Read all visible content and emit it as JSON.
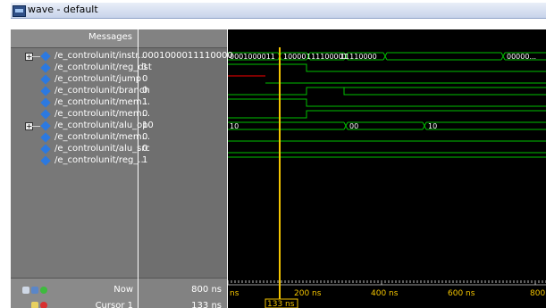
{
  "window": {
    "title": "wave - default"
  },
  "header": {
    "messages_label": "Messages"
  },
  "signals": [
    {
      "name": "/e_controlunit/instr...",
      "value": "0001000011110000",
      "expandable": true
    },
    {
      "name": "/e_controlunit/reg_dst",
      "value": "1",
      "expandable": false
    },
    {
      "name": "/e_controlunit/jump",
      "value": "0",
      "expandable": false
    },
    {
      "name": "/e_controlunit/branch",
      "value": "0",
      "expandable": false
    },
    {
      "name": "/e_controlunit/mem...",
      "value": "1",
      "expandable": false
    },
    {
      "name": "/e_controlunit/mem...",
      "value": "0",
      "expandable": false
    },
    {
      "name": "/e_controlunit/alu_op",
      "value": "10",
      "expandable": true
    },
    {
      "name": "/e_controlunit/mem...",
      "value": "0",
      "expandable": false
    },
    {
      "name": "/e_controlunit/alu_src",
      "value": "0",
      "expandable": false
    },
    {
      "name": "/e_controlunit/reg_...",
      "value": "1",
      "expandable": false
    }
  ],
  "bus_labels": {
    "instr": [
      "0001000011",
      "10000",
      "111100001",
      "11110000",
      "00000..."
    ],
    "alu_op": [
      "10",
      "00",
      "10"
    ]
  },
  "footer": {
    "now_label": "Now",
    "now_value": "800 ns",
    "cursor_label": "Cursor 1",
    "cursor_value": "133 ns",
    "cursor_flag": "133 ns"
  },
  "timeline": {
    "unit": "ns",
    "tick_labels": [
      "ns",
      "200 ns",
      "400 ns",
      "600 ns",
      "800"
    ]
  },
  "colors": {
    "wave_green": "#00c000",
    "wave_red": "#ff0000",
    "cursor_yellow": "#f3c400"
  }
}
